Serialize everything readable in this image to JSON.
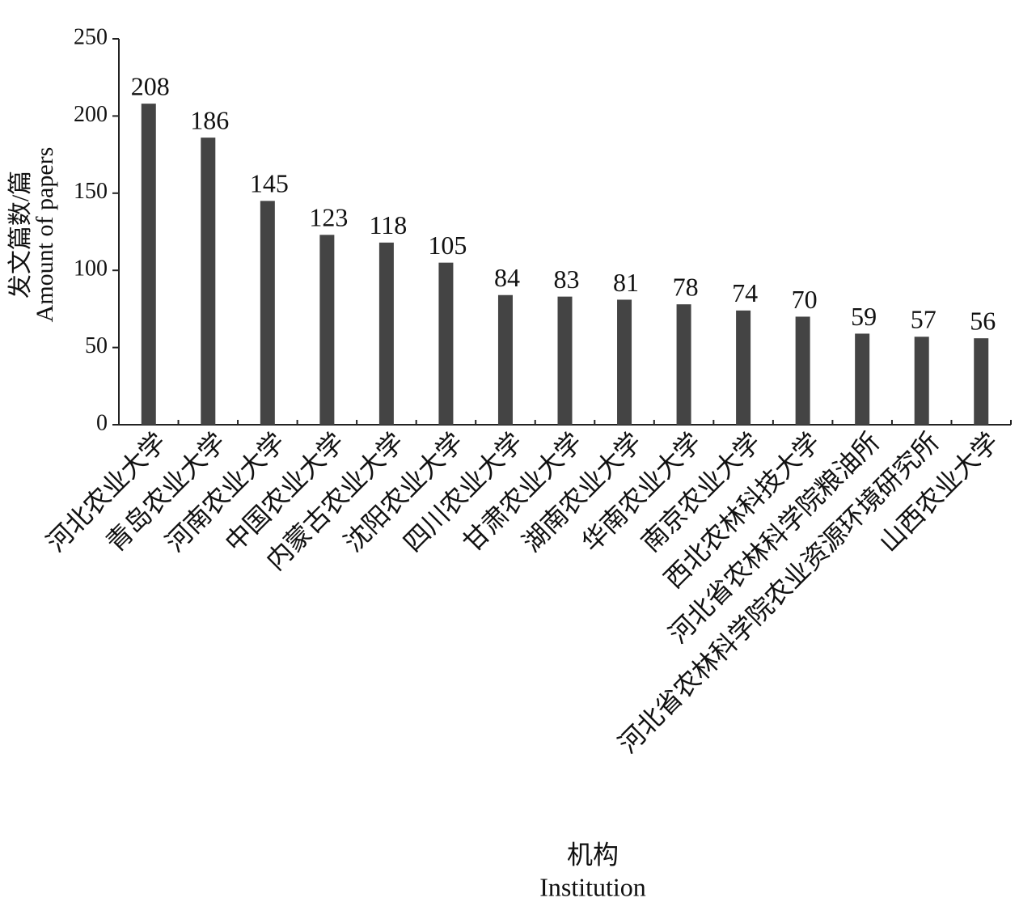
{
  "chart_data": {
    "type": "bar",
    "y_label": [
      "发文篇数/篇",
      "Amount of papers"
    ],
    "x_label": [
      "机构",
      "Institution"
    ],
    "categories": [
      "河北农业大学",
      "青岛农业大学",
      "河南农业大学",
      "中国农业大学",
      "内蒙古农业大学",
      "沈阳农业大学",
      "四川农业大学",
      "甘肃农业大学",
      "湖南农业大学",
      "华南农业大学",
      "南京农业大学",
      "西北农林科技大学",
      "河北省农林科学院粮油所",
      "河北省农林科学院农业资源环境研究所",
      "山西农业大学"
    ],
    "values": [
      208,
      186,
      145,
      123,
      118,
      105,
      84,
      83,
      81,
      78,
      74,
      70,
      59,
      57,
      56
    ],
    "color": "#444444",
    "ylim": [
      0,
      250
    ],
    "yticks": [
      0,
      50,
      100,
      150,
      200,
      250
    ]
  }
}
